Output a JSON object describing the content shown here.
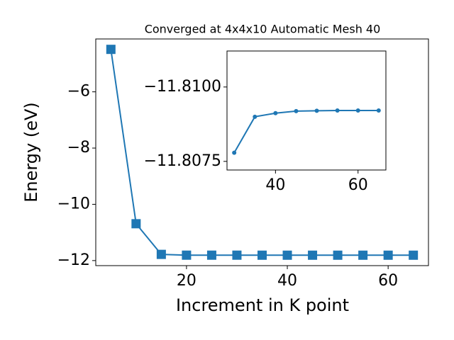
{
  "chart_data": [
    {
      "type": "line",
      "title": "Converged at 4x4x10 Automatic Mesh 40",
      "x_label": "Increment in K point",
      "y_label": "Energy (eV)",
      "x": [
        5,
        10,
        15,
        20,
        25,
        30,
        35,
        40,
        45,
        50,
        55,
        60,
        65
      ],
      "series": [
        {
          "color": "#1f77b4",
          "marker": "square",
          "values": [
            -4.49,
            -10.69,
            -11.78,
            -11.808,
            -11.808,
            -11.808,
            -11.809,
            -11.809,
            -11.809,
            -11.809,
            -11.809,
            -11.809,
            -11.809
          ]
        }
      ],
      "xlim": [
        2,
        68
      ],
      "ylim": [
        -12.18,
        -4.12
      ],
      "xticks": [
        20,
        40,
        60
      ],
      "yticks": [
        {
          "value": -6,
          "label": "−6"
        },
        {
          "value": -8,
          "label": "−8"
        },
        {
          "value": -10,
          "label": "−10"
        },
        {
          "value": -12,
          "label": "−12"
        }
      ]
    },
    {
      "type": "line",
      "x": [
        30,
        35,
        40,
        45,
        50,
        55,
        60,
        65
      ],
      "series": [
        {
          "color": "#1f77b4",
          "marker": "circle",
          "values": [
            -11.80779,
            -11.809,
            -11.80912,
            -11.80919,
            -11.8092,
            -11.80921,
            -11.80921,
            -11.80921
          ]
        }
      ],
      "xlim": [
        28.25,
        66.75
      ],
      "ylim": [
        -11.80721,
        -11.81121
      ],
      "xticks": [
        40,
        60
      ],
      "yticks": [
        {
          "value": -11.81,
          "label": "−11.8100"
        },
        {
          "value": -11.8075,
          "label": "−11.8075"
        }
      ]
    }
  ]
}
